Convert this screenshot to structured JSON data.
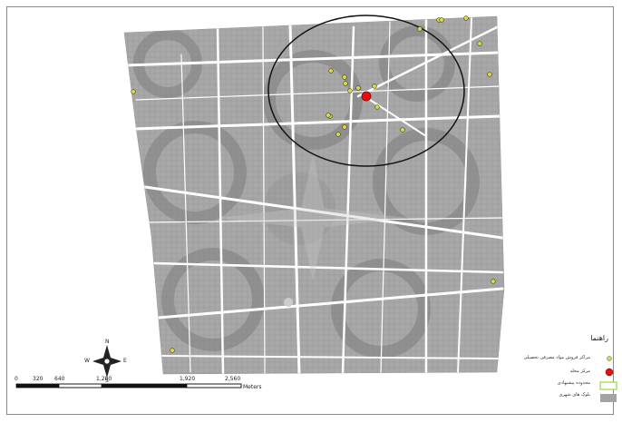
{
  "map": {
    "colors": {
      "block": "#a3a3a3",
      "block_dark": "#8c8c8c",
      "street": "#ffffff",
      "buffer": "#111111",
      "facility": "#d8d84a",
      "center": "#e01010",
      "watermark": "#c8c8c8"
    }
  },
  "legend": {
    "title": "راهنما",
    "items": [
      {
        "label": "مراکز فروش مواد مصرفی تحصیلی",
        "symbol": "facility-dot-icon",
        "color": "#d8d84a"
      },
      {
        "label": "مرکز محله",
        "symbol": "red-dot-icon",
        "color": "#e01010"
      },
      {
        "label": "محدوده پیشنهادی",
        "symbol": "green-box-icon",
        "color": "#a8e06a"
      },
      {
        "label": "بلوک های شهری",
        "symbol": "gray-box-icon",
        "color": "#a3a3a3"
      }
    ]
  },
  "scale": {
    "ticks": [
      "0",
      "320",
      "640",
      "1,280",
      "1,920",
      "2,560"
    ],
    "unit": "Meters"
  },
  "compass": {
    "n": "N",
    "s": "S",
    "e": "E",
    "w": "W"
  }
}
